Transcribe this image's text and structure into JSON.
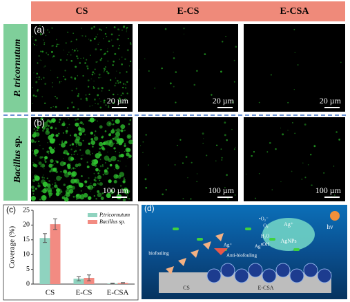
{
  "header": {
    "columns": [
      "CS",
      "E-CS",
      "E-CSA"
    ]
  },
  "rows": [
    {
      "label_italic": "P. tricornutum",
      "label_rest": null,
      "panel": "(a)",
      "scale_bars": [
        "20 µm",
        "20 µm",
        "20 µm"
      ]
    },
    {
      "label_italic": "Bacillus",
      "label_rest": "sp.",
      "panel": "(b)",
      "scale_bars": [
        "100 µm",
        "100 µm",
        "100 µm"
      ]
    }
  ],
  "chart_data": {
    "type": "bar",
    "panel": "(c)",
    "ylabel": "Coverage (%)",
    "categories": [
      "CS",
      "E-CS",
      "E-CSA"
    ],
    "series": [
      {
        "name": "P.tricornutum",
        "color": "#8fd3bf",
        "values": [
          15.6,
          1.8,
          0.2
        ],
        "errors": [
          1.5,
          0.7,
          0.1
        ]
      },
      {
        "name": "Bacillus sp.",
        "color": "#f28b82",
        "values": [
          20.3,
          2.1,
          0.4
        ],
        "errors": [
          1.8,
          1.0,
          0.1
        ]
      }
    ],
    "ylim": [
      0,
      25
    ],
    "yticks": [
      0,
      5,
      10,
      15,
      20,
      25
    ],
    "legend": "upper right"
  },
  "diagram": {
    "panel": "(d)",
    "labels": [
      "biofouling",
      "Anti-biofouling",
      "Ag⁺",
      "Ag⁺",
      "•O₂⁻",
      "O₂",
      "H₂O",
      "•OH",
      "Ag⁺",
      "AgNPs",
      "hv",
      "CS",
      "E-CSA"
    ]
  }
}
